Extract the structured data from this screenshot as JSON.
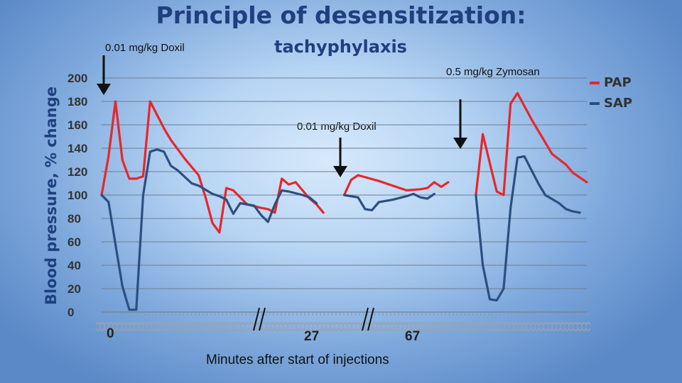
{
  "slide": {
    "title": "Principle of desensitization:",
    "subtitle": "tachyphylaxis",
    "annotations": {
      "doxil_first": "0.01 mg/kg Doxil",
      "zymosan": "0.5 mg/kg Zymosan",
      "doxil_second": "0.01 mg/kg Doxil"
    }
  },
  "chart_data": {
    "type": "line",
    "ylabel": "Blood pressure, % change",
    "xlabel": "Minutes after start of injections",
    "ylim": [
      0,
      200
    ],
    "yticks": [
      0,
      20,
      40,
      60,
      80,
      100,
      120,
      140,
      160,
      180,
      200
    ],
    "x_tick_labels": [
      "0",
      "27",
      "67"
    ],
    "axis_break_marks": 2,
    "grid": true,
    "legend": "top-right",
    "colors": {
      "PAP": "#e8262b",
      "SAP": "#2b4f80"
    },
    "series": [
      {
        "name": "PAP",
        "segments": [
          [
            [
              0,
              100
            ],
            [
              1,
              133
            ],
            [
              2,
              180
            ],
            [
              3,
              130
            ],
            [
              4,
              114
            ],
            [
              5,
              114
            ],
            [
              6,
              116
            ],
            [
              7,
              180
            ],
            [
              9,
              157
            ],
            [
              10,
              147
            ],
            [
              12,
              131
            ],
            [
              14,
              117
            ],
            [
              15,
              98
            ],
            [
              16,
              76
            ],
            [
              17,
              68
            ],
            [
              18,
              106
            ],
            [
              19,
              104
            ],
            [
              21,
              92
            ],
            [
              23,
              89
            ],
            [
              24,
              88
            ],
            [
              25,
              85
            ],
            [
              26,
              114
            ],
            [
              27,
              109
            ],
            [
              28,
              111
            ],
            [
              30,
              97
            ],
            [
              31,
              92
            ],
            [
              32,
              85
            ]
          ],
          [
            [
              35,
              100
            ],
            [
              36,
              113
            ],
            [
              37,
              117
            ],
            [
              40,
              112
            ],
            [
              44,
              104
            ],
            [
              46,
              105
            ],
            [
              47,
              106
            ],
            [
              48,
              111
            ],
            [
              49,
              107
            ],
            [
              50,
              111
            ]
          ],
          [
            [
              54,
              100
            ],
            [
              55,
              152
            ],
            [
              57,
              103
            ],
            [
              58,
              100
            ],
            [
              59,
              178
            ],
            [
              60,
              187
            ],
            [
              62,
              165
            ],
            [
              64,
              145
            ],
            [
              65,
              135
            ],
            [
              67,
              126
            ],
            [
              68,
              119
            ],
            [
              70,
              111
            ]
          ]
        ]
      },
      {
        "name": "SAP",
        "segments": [
          [
            [
              0,
              100
            ],
            [
              1,
              94
            ],
            [
              2,
              58
            ],
            [
              3,
              22
            ],
            [
              4,
              2
            ],
            [
              5,
              2
            ],
            [
              6,
              100
            ],
            [
              7,
              137
            ],
            [
              8,
              139
            ],
            [
              9,
              137
            ],
            [
              10,
              125
            ],
            [
              11,
              121
            ],
            [
              13,
              110
            ],
            [
              14,
              108
            ],
            [
              16,
              101
            ],
            [
              17,
              99
            ],
            [
              18,
              96
            ],
            [
              19,
              84
            ],
            [
              20,
              93
            ],
            [
              22,
              91
            ],
            [
              23,
              83
            ],
            [
              24,
              77
            ],
            [
              25,
              92
            ],
            [
              26,
              104
            ],
            [
              27,
              103
            ],
            [
              29,
              100
            ],
            [
              30,
              98
            ],
            [
              31,
              93
            ]
          ],
          [
            [
              35,
              100
            ],
            [
              37,
              98
            ],
            [
              38,
              88
            ],
            [
              39,
              87
            ],
            [
              40,
              94
            ],
            [
              42,
              96
            ],
            [
              44,
              99
            ],
            [
              45,
              101
            ],
            [
              46,
              98
            ],
            [
              47,
              97
            ],
            [
              48,
              101
            ]
          ],
          [
            [
              54,
              100
            ],
            [
              55,
              40
            ],
            [
              56,
              11
            ],
            [
              57,
              10
            ],
            [
              58,
              20
            ],
            [
              59,
              89
            ],
            [
              60,
              132
            ],
            [
              61,
              133
            ],
            [
              63,
              110
            ],
            [
              64,
              100
            ],
            [
              66,
              93
            ],
            [
              67,
              88
            ],
            [
              68,
              86
            ],
            [
              69,
              85
            ]
          ]
        ]
      }
    ]
  }
}
